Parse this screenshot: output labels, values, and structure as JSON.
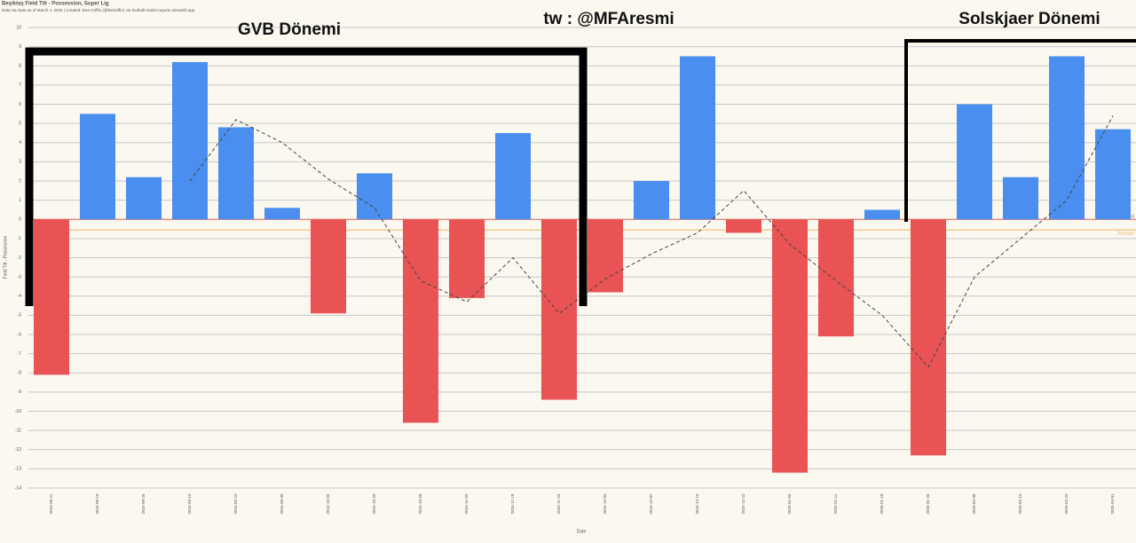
{
  "chart_data": {
    "type": "bar",
    "title": "Beşiktaş Field Tilt - Possession, Super Lig",
    "subtitle": "Data via Opta as of March 4, 2025 | Created: Bret Griffin (@BeGriffin) via football-match-reports.streamlit.app",
    "x_label": "Date",
    "y_label": "Field Tilt - Possession",
    "annotations": [
      "GVB Dönemi",
      "tw : @MFAresmi",
      "Solskjaer Dönemi"
    ],
    "categories": [
      "2024-08-11",
      "2024-08-18",
      "2024-08-25",
      "2024-09-15",
      "2024-09-22",
      "2024-09-30",
      "2024-10-05",
      "2024-10-20",
      "2024-10-28",
      "2024-11-02",
      "2024-11-10",
      "2024-11-24",
      "2024-12-02",
      "2024-12-07",
      "2024-12-16",
      "2024-12-22",
      "2025-01-05",
      "2025-01-11",
      "2025-01-18",
      "2025-01-26",
      "2025-02-08",
      "2025-02-15",
      "2025-02-23",
      "2025-03-01"
    ],
    "values": [
      -8.1,
      5.5,
      2.2,
      8.2,
      4.8,
      0.6,
      -4.9,
      2.4,
      -10.6,
      -4.1,
      4.5,
      -9.4,
      -3.8,
      2.0,
      8.5,
      -0.7,
      -13.2,
      -6.1,
      0.5,
      -12.3,
      6.0,
      2.2,
      8.5,
      4.7
    ],
    "positive_color": "#4a8ff0",
    "negative_color": "#ea5353",
    "line_values": [
      null,
      null,
      null,
      2.0,
      5.2,
      4.0,
      2.1,
      0.6,
      -3.2,
      -4.3,
      -2.0,
      -4.9,
      -3.1,
      -1.8,
      -0.7,
      1.5,
      -1.3,
      -3.2,
      -5.0,
      -7.7,
      -3.0,
      -1.0,
      1.0,
      5.4
    ],
    "line_color": "#444444",
    "hlines": [
      {
        "value": 0,
        "label": "Neutral",
        "color": "#e86a5a"
      },
      {
        "value": -0.55,
        "label": "Average",
        "color": "#f0b860"
      }
    ],
    "ylim": [
      -14,
      10
    ],
    "yticks": [
      10,
      9,
      8,
      7,
      6,
      5,
      4,
      3,
      2,
      1,
      0,
      -1,
      -2,
      -3,
      -4,
      -5,
      -6,
      -7,
      -8,
      -9,
      -10,
      -11,
      -12,
      -13,
      -14
    ],
    "grid": true
  }
}
